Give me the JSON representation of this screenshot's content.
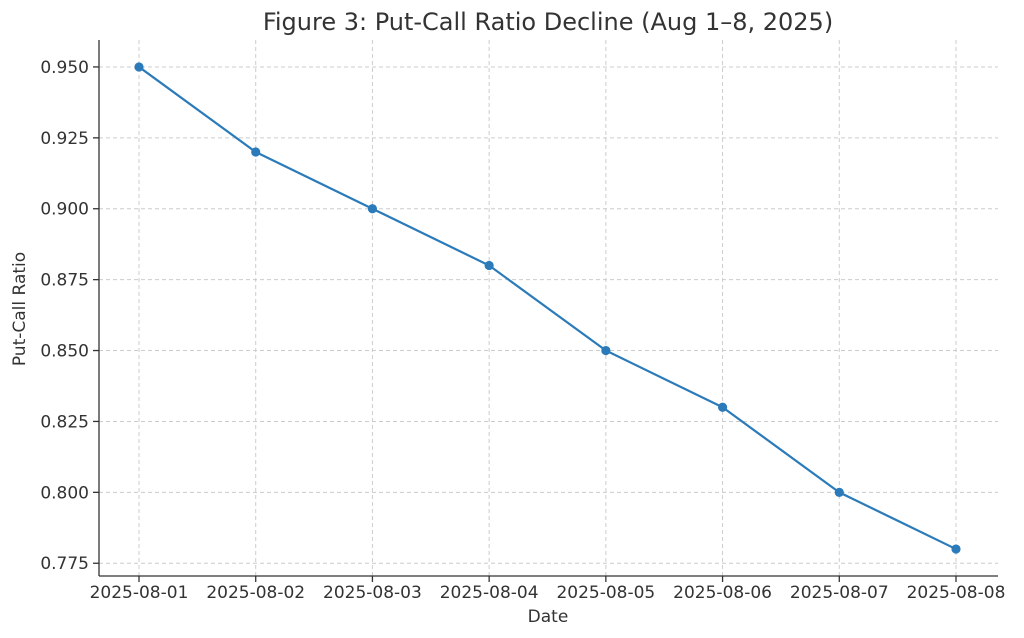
{
  "chart_data": {
    "type": "line",
    "title": "Figure 3: Put-Call Ratio Decline (Aug 1–8, 2025)",
    "xlabel": "Date",
    "ylabel": "Put-Call Ratio",
    "categories": [
      "2025-08-01",
      "2025-08-02",
      "2025-08-03",
      "2025-08-04",
      "2025-08-05",
      "2025-08-06",
      "2025-08-07",
      "2025-08-08"
    ],
    "series": [
      {
        "values": [
          0.95,
          0.92,
          0.9,
          0.88,
          0.85,
          0.83,
          0.8,
          0.78
        ],
        "color": "#2b7bba",
        "marker": "circle"
      }
    ],
    "ylim": [
      0.7705,
      0.9595
    ],
    "yticks": [
      "0.775",
      "0.800",
      "0.825",
      "0.850",
      "0.875",
      "0.900",
      "0.925",
      "0.950"
    ],
    "grid": true,
    "legend": "none"
  }
}
